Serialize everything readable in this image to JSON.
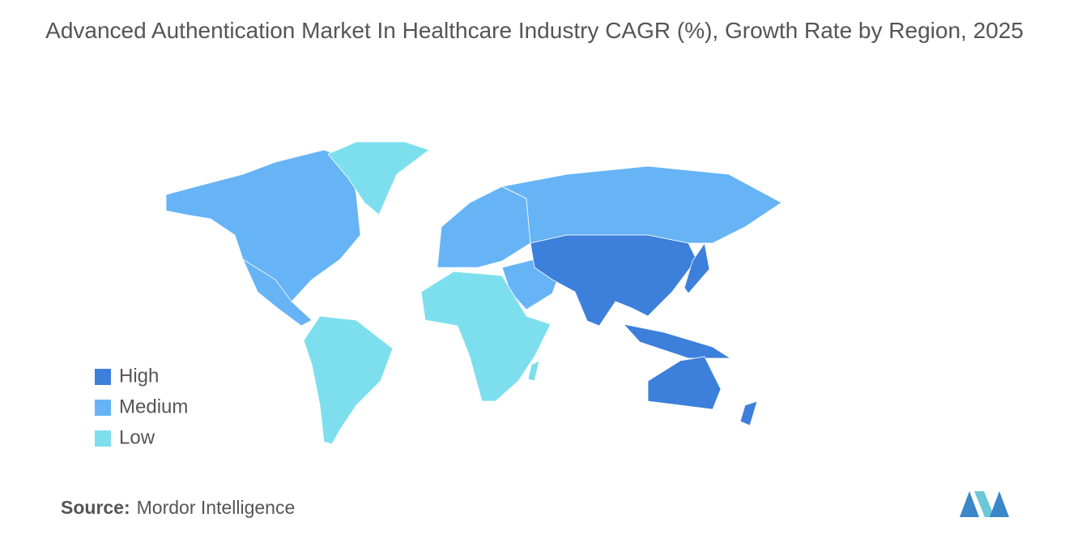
{
  "title": "Advanced Authentication Market In Healthcare Industry CAGR (%), Growth Rate by Region, 2025",
  "legend": [
    {
      "label": "High",
      "color": "#3d80db"
    },
    {
      "label": "Medium",
      "color": "#66b4f6"
    },
    {
      "label": "Low",
      "color": "#7ddfee"
    }
  ],
  "source": {
    "label": "Source:",
    "text": "Mordor Intelligence"
  }
}
